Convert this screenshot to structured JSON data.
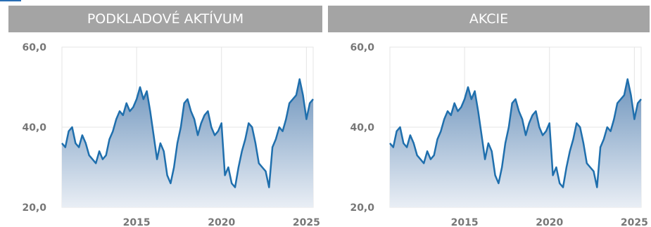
{
  "colors": {
    "header_bg": "#a4a4a4",
    "line": "#1f6fad",
    "fill_top": "#6f95bd",
    "fill_bottom": "#e9eef5",
    "grid": "#e4e4e4",
    "axis_text": "#777777"
  },
  "panels": [
    {
      "title": "PODKLADOVÉ AKTÍVUM"
    },
    {
      "title": "AKCIE"
    }
  ],
  "chart_data": [
    {
      "type": "area",
      "title": "PODKLADOVÉ AKTÍVUM",
      "xlabel": "",
      "ylabel": "",
      "x_ticks": [
        2015,
        2020,
        2025
      ],
      "y_ticks": [
        20,
        40,
        60
      ],
      "y_tick_labels": [
        "20,0",
        "40,0",
        "60,0"
      ],
      "xlim": [
        2010.6,
        2025.4
      ],
      "ylim": [
        20,
        60
      ],
      "grid": true,
      "series": [
        {
          "x": [
            2010.6,
            2010.8,
            2011.0,
            2011.2,
            2011.4,
            2011.6,
            2011.8,
            2012.0,
            2012.2,
            2012.4,
            2012.6,
            2012.8,
            2013.0,
            2013.2,
            2013.4,
            2013.6,
            2013.8,
            2014.0,
            2014.2,
            2014.4,
            2014.6,
            2014.8,
            2015.0,
            2015.2,
            2015.4,
            2015.6,
            2015.8,
            2016.0,
            2016.2,
            2016.4,
            2016.6,
            2016.8,
            2017.0,
            2017.2,
            2017.4,
            2017.6,
            2017.8,
            2018.0,
            2018.2,
            2018.4,
            2018.6,
            2018.8,
            2019.0,
            2019.2,
            2019.4,
            2019.6,
            2019.8,
            2020.0,
            2020.2,
            2020.4,
            2020.6,
            2020.8,
            2021.0,
            2021.2,
            2021.4,
            2021.6,
            2021.8,
            2022.0,
            2022.2,
            2022.4,
            2022.6,
            2022.8,
            2023.0,
            2023.2,
            2023.4,
            2023.6,
            2023.8,
            2024.0,
            2024.2,
            2024.4,
            2024.6,
            2024.8,
            2025.0,
            2025.2,
            2025.4
          ],
          "y": [
            36,
            35,
            39,
            40,
            36,
            35,
            38,
            36,
            33,
            32,
            31,
            34,
            32,
            33,
            37,
            39,
            42,
            44,
            43,
            46,
            44,
            45,
            47,
            50,
            47,
            49,
            44,
            38,
            32,
            36,
            34,
            28,
            26,
            30,
            36,
            40,
            46,
            47,
            44,
            42,
            38,
            41,
            43,
            44,
            40,
            38,
            39,
            41,
            28,
            30,
            26,
            25,
            30,
            34,
            37,
            41,
            40,
            36,
            31,
            30,
            29,
            25,
            35,
            37,
            40,
            39,
            42,
            46,
            47,
            48,
            52,
            48,
            42,
            46,
            47
          ]
        }
      ]
    },
    {
      "type": "area",
      "title": "AKCIE",
      "xlabel": "",
      "ylabel": "",
      "x_ticks": [
        2015,
        2020,
        2025
      ],
      "y_ticks": [
        20,
        40,
        60
      ],
      "y_tick_labels": [
        "20,0",
        "40,0",
        "60,0"
      ],
      "xlim": [
        2010.6,
        2025.4
      ],
      "ylim": [
        20,
        60
      ],
      "grid": true,
      "series": [
        {
          "x": [
            2010.6,
            2010.8,
            2011.0,
            2011.2,
            2011.4,
            2011.6,
            2011.8,
            2012.0,
            2012.2,
            2012.4,
            2012.6,
            2012.8,
            2013.0,
            2013.2,
            2013.4,
            2013.6,
            2013.8,
            2014.0,
            2014.2,
            2014.4,
            2014.6,
            2014.8,
            2015.0,
            2015.2,
            2015.4,
            2015.6,
            2015.8,
            2016.0,
            2016.2,
            2016.4,
            2016.6,
            2016.8,
            2017.0,
            2017.2,
            2017.4,
            2017.6,
            2017.8,
            2018.0,
            2018.2,
            2018.4,
            2018.6,
            2018.8,
            2019.0,
            2019.2,
            2019.4,
            2019.6,
            2019.8,
            2020.0,
            2020.2,
            2020.4,
            2020.6,
            2020.8,
            2021.0,
            2021.2,
            2021.4,
            2021.6,
            2021.8,
            2022.0,
            2022.2,
            2022.4,
            2022.6,
            2022.8,
            2023.0,
            2023.2,
            2023.4,
            2023.6,
            2023.8,
            2024.0,
            2024.2,
            2024.4,
            2024.6,
            2024.8,
            2025.0,
            2025.2,
            2025.4
          ],
          "y": [
            36,
            35,
            39,
            40,
            36,
            35,
            38,
            36,
            33,
            32,
            31,
            34,
            32,
            33,
            37,
            39,
            42,
            44,
            43,
            46,
            44,
            45,
            47,
            50,
            47,
            49,
            44,
            38,
            32,
            36,
            34,
            28,
            26,
            30,
            36,
            40,
            46,
            47,
            44,
            42,
            38,
            41,
            43,
            44,
            40,
            38,
            39,
            41,
            28,
            30,
            26,
            25,
            30,
            34,
            37,
            41,
            40,
            36,
            31,
            30,
            29,
            25,
            35,
            37,
            40,
            39,
            42,
            46,
            47,
            48,
            52,
            48,
            42,
            46,
            47
          ]
        }
      ]
    }
  ]
}
